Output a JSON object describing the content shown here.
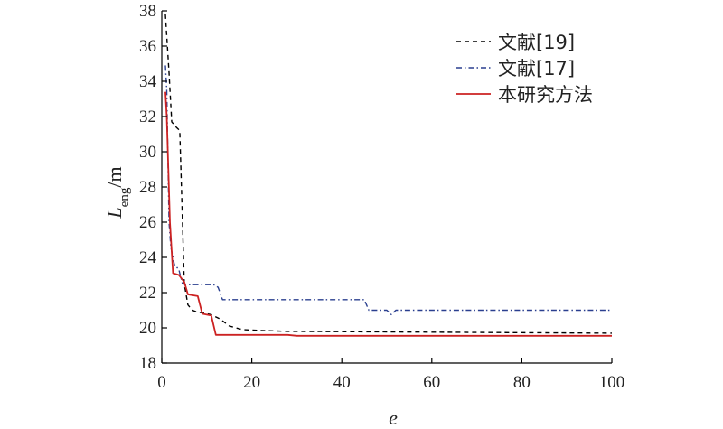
{
  "chart_data": {
    "type": "line",
    "xlabel": "e",
    "ylabel": {
      "main": "L",
      "sub": "eng",
      "unit": "/m"
    },
    "xlim": [
      0,
      100
    ],
    "ylim": [
      18,
      38
    ],
    "x_ticks": [
      0,
      20,
      40,
      60,
      80,
      100
    ],
    "y_ticks": [
      18,
      20,
      22,
      24,
      26,
      28,
      30,
      32,
      34,
      36,
      38
    ],
    "grid": false,
    "legend_position": "top-right",
    "series": [
      {
        "name": "文献[19]",
        "color": "#000000",
        "style": "dashed",
        "points": [
          [
            0.8,
            37.8
          ],
          [
            1.6,
            34.5
          ],
          [
            2.2,
            31.7
          ],
          [
            3.2,
            31.4
          ],
          [
            4.0,
            31.2
          ],
          [
            4.6,
            26.0
          ],
          [
            5.0,
            22.5
          ],
          [
            5.8,
            21.3
          ],
          [
            6.8,
            21.0
          ],
          [
            7.8,
            20.9
          ],
          [
            9.0,
            20.85
          ],
          [
            11.0,
            20.75
          ],
          [
            13.0,
            20.5
          ],
          [
            15.0,
            20.1
          ],
          [
            18.0,
            19.9
          ],
          [
            22.0,
            19.85
          ],
          [
            28.0,
            19.8
          ],
          [
            100.0,
            19.7
          ]
        ]
      },
      {
        "name": "文献[17]",
        "color": "#2a3f8f",
        "style": "dashdot",
        "points": [
          [
            0.8,
            34.9
          ],
          [
            1.1,
            33.5
          ],
          [
            1.6,
            26.0
          ],
          [
            2.0,
            24.6
          ],
          [
            2.8,
            23.6
          ],
          [
            3.8,
            23.3
          ],
          [
            4.6,
            22.5
          ],
          [
            6.0,
            22.45
          ],
          [
            11.5,
            22.45
          ],
          [
            12.5,
            22.3
          ],
          [
            13.5,
            21.6
          ],
          [
            45.0,
            21.6
          ],
          [
            46.0,
            21.0
          ],
          [
            50.0,
            21.0
          ],
          [
            51.0,
            20.75
          ],
          [
            52.0,
            21.0
          ],
          [
            100.0,
            21.0
          ]
        ]
      },
      {
        "name": "本研究方法",
        "color": "#cc2222",
        "style": "solid",
        "points": [
          [
            0.8,
            33.4
          ],
          [
            1.1,
            32.0
          ],
          [
            1.8,
            26.0
          ],
          [
            2.5,
            23.1
          ],
          [
            3.8,
            23.0
          ],
          [
            5.0,
            22.6
          ],
          [
            5.8,
            21.9
          ],
          [
            8.0,
            21.8
          ],
          [
            9.0,
            20.8
          ],
          [
            11.0,
            20.7
          ],
          [
            12.0,
            19.6
          ],
          [
            28.0,
            19.6
          ],
          [
            30.0,
            19.55
          ],
          [
            100.0,
            19.55
          ]
        ]
      }
    ]
  }
}
